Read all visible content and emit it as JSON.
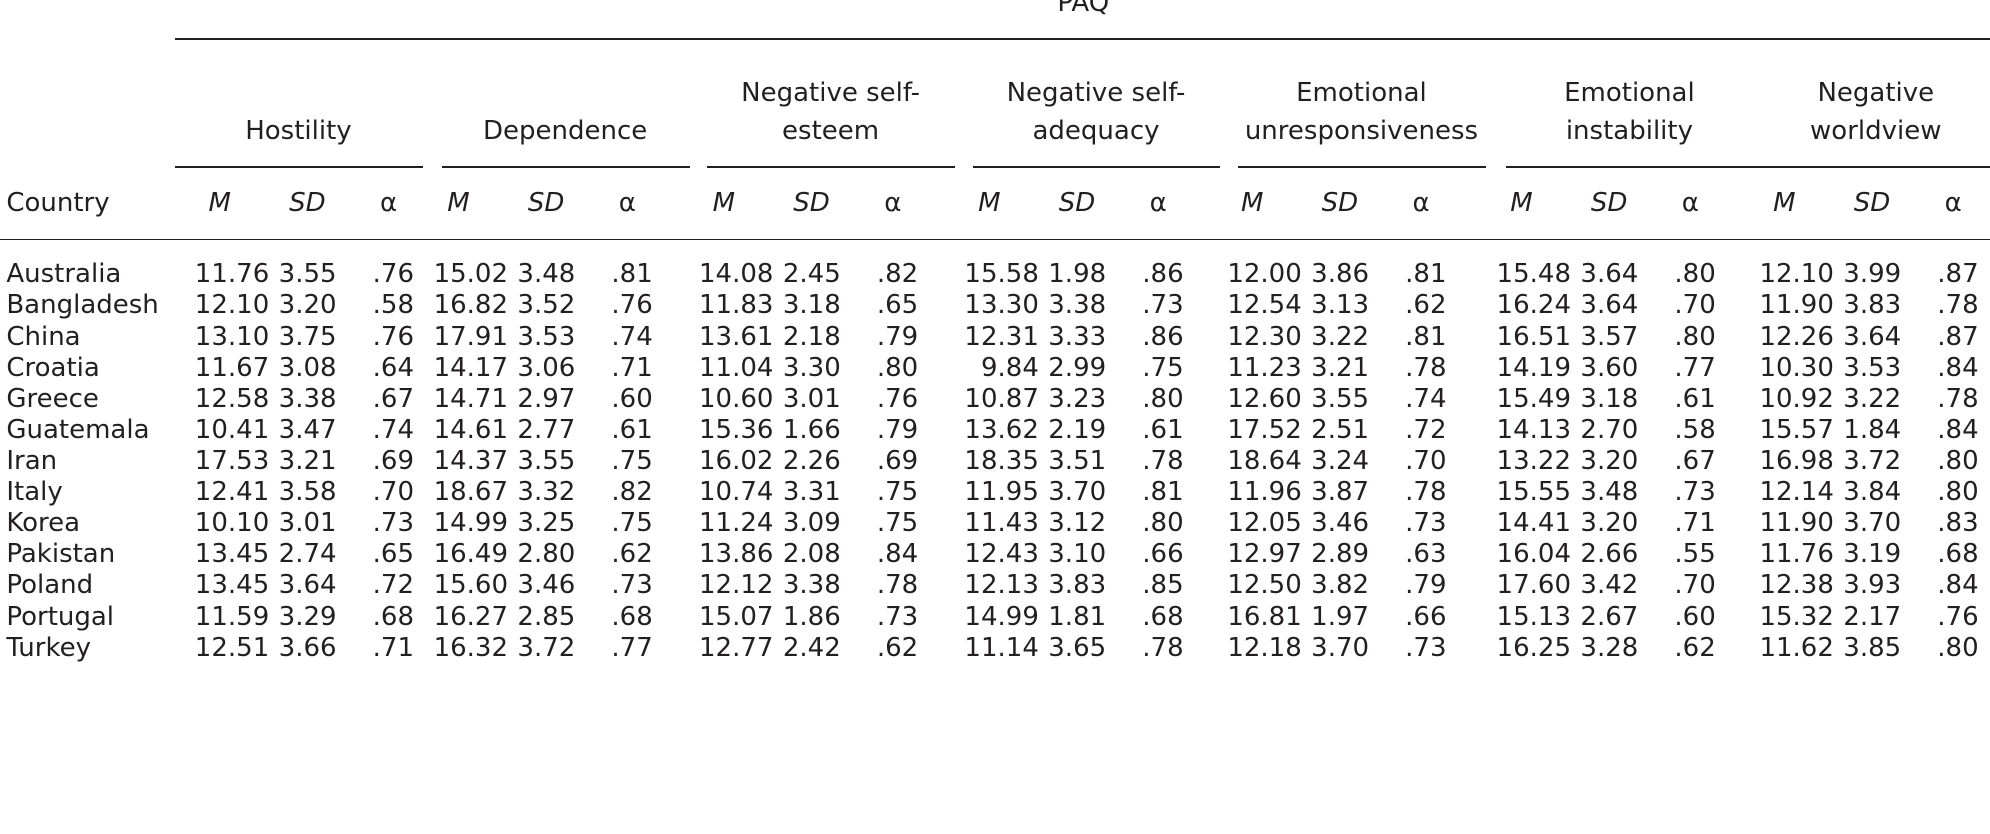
{
  "header": {
    "title": "PAQ",
    "country_label": "Country",
    "groups": [
      [
        "Hostility"
      ],
      [
        "Dependence"
      ],
      [
        "Negative self-",
        "esteem"
      ],
      [
        "Negative self-",
        "adequacy"
      ],
      [
        "Emotional",
        "unresponsiveness"
      ],
      [
        "Emotional",
        "instability"
      ],
      [
        "Negative",
        "worldview"
      ]
    ],
    "subheads": [
      "M",
      "SD",
      "α"
    ]
  },
  "table": {
    "rows": [
      {
        "country": "Australia",
        "cells": [
          "11.76",
          "3.55",
          ".76",
          "15.02",
          "3.48",
          ".81",
          "14.08",
          "2.45",
          ".82",
          "15.58",
          "1.98",
          ".86",
          "12.00",
          "3.86",
          ".81",
          "15.48",
          "3.64",
          ".80",
          "12.10",
          "3.99",
          ".87"
        ]
      },
      {
        "country": "Bangladesh",
        "cells": [
          "12.10",
          "3.20",
          ".58",
          "16.82",
          "3.52",
          ".76",
          "11.83",
          "3.18",
          ".65",
          "13.30",
          "3.38",
          ".73",
          "12.54",
          "3.13",
          ".62",
          "16.24",
          "3.64",
          ".70",
          "11.90",
          "3.83",
          ".78"
        ]
      },
      {
        "country": "China",
        "cells": [
          "13.10",
          "3.75",
          ".76",
          "17.91",
          "3.53",
          ".74",
          "13.61",
          "2.18",
          ".79",
          "12.31",
          "3.33",
          ".86",
          "12.30",
          "3.22",
          ".81",
          "16.51",
          "3.57",
          ".80",
          "12.26",
          "3.64",
          ".87"
        ]
      },
      {
        "country": "Croatia",
        "cells": [
          "11.67",
          "3.08",
          ".64",
          "14.17",
          "3.06",
          ".71",
          "11.04",
          "3.30",
          ".80",
          "9.84",
          "2.99",
          ".75",
          "11.23",
          "3.21",
          ".78",
          "14.19",
          "3.60",
          ".77",
          "10.30",
          "3.53",
          ".84"
        ]
      },
      {
        "country": "Greece",
        "cells": [
          "12.58",
          "3.38",
          ".67",
          "14.71",
          "2.97",
          ".60",
          "10.60",
          "3.01",
          ".76",
          "10.87",
          "3.23",
          ".80",
          "12.60",
          "3.55",
          ".74",
          "15.49",
          "3.18",
          ".61",
          "10.92",
          "3.22",
          ".78"
        ]
      },
      {
        "country": "Guatemala",
        "cells": [
          "10.41",
          "3.47",
          ".74",
          "14.61",
          "2.77",
          ".61",
          "15.36",
          "1.66",
          ".79",
          "13.62",
          "2.19",
          ".61",
          "17.52",
          "2.51",
          ".72",
          "14.13",
          "2.70",
          ".58",
          "15.57",
          "1.84",
          ".84"
        ]
      },
      {
        "country": "Iran",
        "cells": [
          "17.53",
          "3.21",
          ".69",
          "14.37",
          "3.55",
          ".75",
          "16.02",
          "2.26",
          ".69",
          "18.35",
          "3.51",
          ".78",
          "18.64",
          "3.24",
          ".70",
          "13.22",
          "3.20",
          ".67",
          "16.98",
          "3.72",
          ".80"
        ]
      },
      {
        "country": "Italy",
        "cells": [
          "12.41",
          "3.58",
          ".70",
          "18.67",
          "3.32",
          ".82",
          "10.74",
          "3.31",
          ".75",
          "11.95",
          "3.70",
          ".81",
          "11.96",
          "3.87",
          ".78",
          "15.55",
          "3.48",
          ".73",
          "12.14",
          "3.84",
          ".80"
        ]
      },
      {
        "country": "Korea",
        "cells": [
          "10.10",
          "3.01",
          ".73",
          "14.99",
          "3.25",
          ".75",
          "11.24",
          "3.09",
          ".75",
          "11.43",
          "3.12",
          ".80",
          "12.05",
          "3.46",
          ".73",
          "14.41",
          "3.20",
          ".71",
          "11.90",
          "3.70",
          ".83"
        ]
      },
      {
        "country": "Pakistan",
        "cells": [
          "13.45",
          "2.74",
          ".65",
          "16.49",
          "2.80",
          ".62",
          "13.86",
          "2.08",
          ".84",
          "12.43",
          "3.10",
          ".66",
          "12.97",
          "2.89",
          ".63",
          "16.04",
          "2.66",
          ".55",
          "11.76",
          "3.19",
          ".68"
        ]
      },
      {
        "country": "Poland",
        "cells": [
          "13.45",
          "3.64",
          ".72",
          "15.60",
          "3.46",
          ".73",
          "12.12",
          "3.38",
          ".78",
          "12.13",
          "3.83",
          ".85",
          "12.50",
          "3.82",
          ".79",
          "17.60",
          "3.42",
          ".70",
          "12.38",
          "3.93",
          ".84"
        ]
      },
      {
        "country": "Portugal",
        "cells": [
          "11.59",
          "3.29",
          ".68",
          "16.27",
          "2.85",
          ".68",
          "15.07",
          "1.86",
          ".73",
          "14.99",
          "1.81",
          ".68",
          "16.81",
          "1.97",
          ".66",
          "15.13",
          "2.67",
          ".60",
          "15.32",
          "2.17",
          ".76"
        ]
      },
      {
        "country": "Turkey",
        "cells": [
          "12.51",
          "3.66",
          ".71",
          "16.32",
          "3.72",
          ".77",
          "12.77",
          "2.42",
          ".62",
          "11.14",
          "3.65",
          ".78",
          "12.18",
          "3.70",
          ".73",
          "16.25",
          "3.28",
          ".62",
          "11.62",
          "3.85",
          ".80"
        ]
      }
    ]
  }
}
